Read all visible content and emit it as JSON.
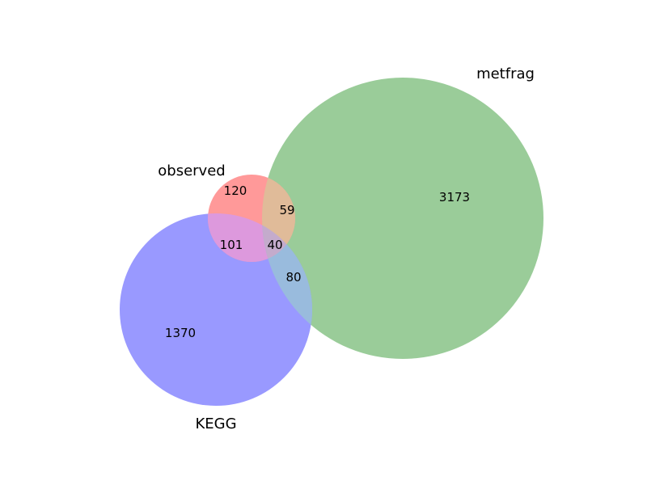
{
  "diagram": {
    "type": "venn3",
    "sets": [
      {
        "key": "observed",
        "label": "observed",
        "color": "#ff9999"
      },
      {
        "key": "metfrag",
        "label": "metfrag",
        "color": "#9acc99"
      },
      {
        "key": "kegg",
        "label": "KEGG",
        "color": "#9999ff"
      }
    ],
    "regions": {
      "observed_only": "120",
      "metfrag_only": "3173",
      "kegg_only": "1370",
      "observed_metfrag": "59",
      "observed_kegg": "101",
      "metfrag_kegg": "80",
      "all_three": "40"
    }
  }
}
